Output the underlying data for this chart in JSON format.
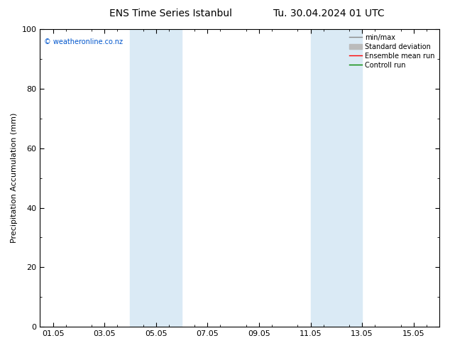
{
  "title": "ENS Time Series Istanbul",
  "title2": "Tu. 30.04.2024 01 UTC",
  "ylabel": "Precipitation Accumulation (mm)",
  "ylim": [
    0,
    100
  ],
  "yticks": [
    0,
    20,
    40,
    60,
    80,
    100
  ],
  "xlabel": "",
  "watermark": "© weatheronline.co.nz",
  "xtick_labels": [
    "01.05",
    "03.05",
    "05.05",
    "07.05",
    "09.05",
    "11.05",
    "13.05",
    "15.05"
  ],
  "xtick_positions": [
    0,
    2,
    4,
    6,
    8,
    10,
    12,
    14
  ],
  "xlim": [
    -0.5,
    15.0
  ],
  "shaded_bands": [
    {
      "x_start": 3.0,
      "x_end": 5.0
    },
    {
      "x_start": 10.0,
      "x_end": 12.0
    }
  ],
  "shade_color": "#daeaf5",
  "legend_entries": [
    "min/max",
    "Standard deviation",
    "Ensemble mean run",
    "Controll run"
  ],
  "legend_line_colors": [
    "#888888",
    "#bbbbbb",
    "#ff0000",
    "#008800"
  ],
  "background_color": "#ffffff",
  "plot_bg_color": "#ffffff",
  "border_color": "#000000",
  "tick_color": "#000000",
  "text_color": "#000000",
  "watermark_color": "#0055cc",
  "title_fontsize": 10,
  "tick_fontsize": 8,
  "ylabel_fontsize": 8,
  "legend_fontsize": 7,
  "watermark_fontsize": 7
}
